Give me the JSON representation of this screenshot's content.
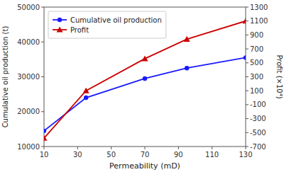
{
  "chart_data": {
    "type": "line",
    "xlabel": "Permeability (mD)",
    "ylabel": "Cumulative oil production (t)",
    "y2label": "Profit (×10⁴)",
    "x": [
      10,
      35,
      70,
      95,
      130
    ],
    "series": [
      {
        "name": "Cumulative oil production",
        "color": "#1a1aff",
        "marker": "circle",
        "values": [
          14500,
          24000,
          29500,
          32500,
          35500
        ]
      },
      {
        "name": "Profit",
        "color": "#cc0000",
        "marker": "triangle",
        "axis": "y2",
        "values": [
          -580,
          100,
          560,
          840,
          1100
        ]
      }
    ],
    "xlim": [
      10,
      130
    ],
    "xticks": [
      10,
      30,
      50,
      70,
      90,
      110,
      130
    ],
    "ylim": [
      10000,
      50000
    ],
    "yticks": [
      10000,
      20000,
      30000,
      40000,
      50000
    ],
    "y2lim": [
      -700,
      1300
    ],
    "y2ticks": [
      -700,
      -500,
      -300,
      -100,
      100,
      300,
      500,
      700,
      900,
      1100,
      1300
    ],
    "grid": false,
    "legend": "upper left"
  }
}
